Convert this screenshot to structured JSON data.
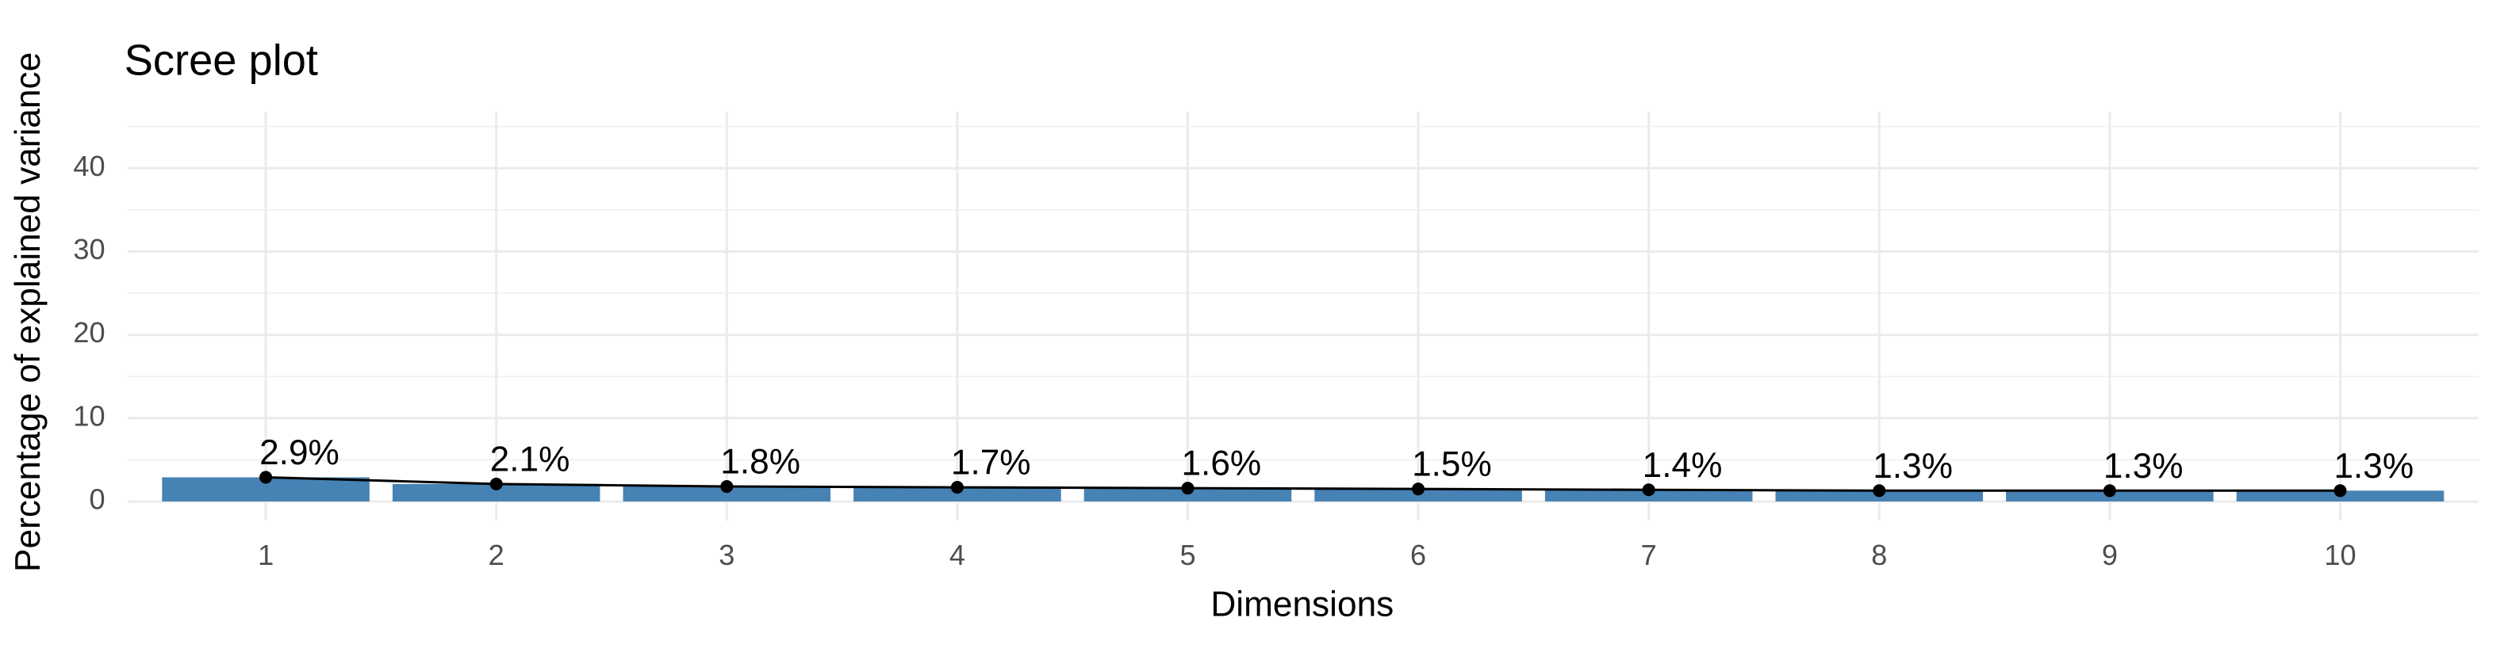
{
  "chart_data": {
    "type": "bar",
    "title": "Scree plot",
    "x_label": "Dimensions",
    "y_label": "Percentage of explained variance",
    "categories": [
      "1",
      "2",
      "3",
      "4",
      "5",
      "6",
      "7",
      "8",
      "9",
      "10"
    ],
    "values": [
      2.9,
      2.1,
      1.8,
      1.7,
      1.6,
      1.5,
      1.4,
      1.3,
      1.3,
      1.3
    ],
    "value_labels": [
      "2.9%",
      "2.1%",
      "1.8%",
      "1.7%",
      "1.6%",
      "1.5%",
      "1.4%",
      "1.3%",
      "1.3%",
      "1.3%"
    ],
    "color": "#4682b4",
    "line_color": "#000000",
    "ylim": [
      -2.3,
      46.8
    ],
    "yticks": [
      0,
      10,
      20,
      30,
      40
    ],
    "y_minor_grid": [
      5,
      15,
      25,
      35,
      45
    ],
    "grid": true
  }
}
